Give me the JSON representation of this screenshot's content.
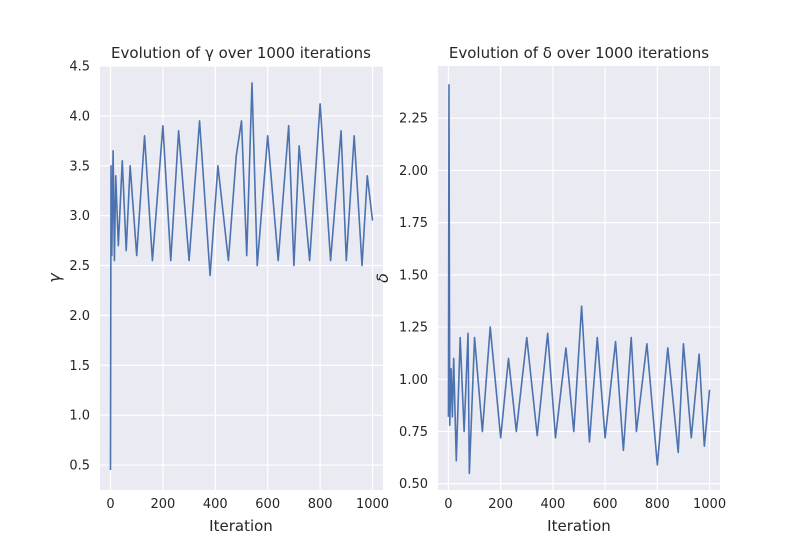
{
  "chart_data": [
    {
      "type": "line",
      "title": "Evolution of γ over 1000 iterations",
      "xlabel": "Iteration",
      "ylabel": "γ",
      "xlim": [
        -40,
        1040
      ],
      "ylim": [
        0.25,
        4.5
      ],
      "xticks": [
        0,
        200,
        400,
        600,
        800,
        1000
      ],
      "yticks": [
        0.5,
        1.0,
        1.5,
        2.0,
        2.5,
        3.0,
        3.5,
        4.0,
        4.5
      ],
      "ytick_labels": [
        "0.5",
        "1.0",
        "1.5",
        "2.0",
        "2.5",
        "3.0",
        "3.5",
        "4.0",
        "4.5"
      ],
      "grid": true,
      "color": "#4c72b0",
      "series": [
        {
          "x": [
            0,
            2,
            5,
            10,
            15,
            20,
            30,
            45,
            60,
            75,
            100,
            130,
            160,
            200,
            230,
            260,
            300,
            340,
            380,
            410,
            450,
            480,
            500,
            520,
            540,
            560,
            600,
            640,
            680,
            700,
            720,
            760,
            800,
            840,
            880,
            900,
            930,
            960,
            980,
            1000
          ],
          "values": [
            0.45,
            3.5,
            2.6,
            3.65,
            2.55,
            3.4,
            2.7,
            3.55,
            2.65,
            3.5,
            2.6,
            3.8,
            2.55,
            3.9,
            2.55,
            3.85,
            2.55,
            3.95,
            2.4,
            3.5,
            2.55,
            3.6,
            3.95,
            2.6,
            4.33,
            2.5,
            3.8,
            2.55,
            3.9,
            2.5,
            3.7,
            2.55,
            4.12,
            2.55,
            3.85,
            2.55,
            3.8,
            2.5,
            3.4,
            2.95
          ]
        }
      ]
    },
    {
      "type": "line",
      "title": "Evolution of δ over 1000 iterations",
      "xlabel": "Iteration",
      "ylabel": "δ",
      "xlim": [
        -40,
        1040
      ],
      "ylim": [
        0.47,
        2.5
      ],
      "xticks": [
        0,
        200,
        400,
        600,
        800,
        1000
      ],
      "yticks": [
        0.5,
        0.75,
        1.0,
        1.25,
        1.5,
        1.75,
        2.0,
        2.25
      ],
      "ytick_labels": [
        "0.50",
        "0.75",
        "1.00",
        "1.25",
        "1.50",
        "1.75",
        "2.00",
        "2.25"
      ],
      "grid": true,
      "color": "#4c72b0",
      "series": [
        {
          "x": [
            0,
            2,
            5,
            10,
            15,
            20,
            30,
            45,
            60,
            75,
            80,
            100,
            130,
            160,
            200,
            230,
            260,
            300,
            340,
            380,
            410,
            450,
            480,
            510,
            540,
            570,
            600,
            640,
            670,
            700,
            720,
            760,
            800,
            840,
            880,
            900,
            930,
            960,
            980,
            1000
          ],
          "values": [
            0.82,
            2.41,
            0.78,
            1.05,
            0.82,
            1.1,
            0.61,
            1.2,
            0.75,
            1.22,
            0.55,
            1.2,
            0.75,
            1.25,
            0.72,
            1.1,
            0.75,
            1.2,
            0.73,
            1.22,
            0.72,
            1.15,
            0.75,
            1.35,
            0.7,
            1.2,
            0.72,
            1.18,
            0.66,
            1.2,
            0.75,
            1.17,
            0.59,
            1.15,
            0.65,
            1.17,
            0.72,
            1.12,
            0.68,
            0.95
          ]
        }
      ]
    }
  ]
}
